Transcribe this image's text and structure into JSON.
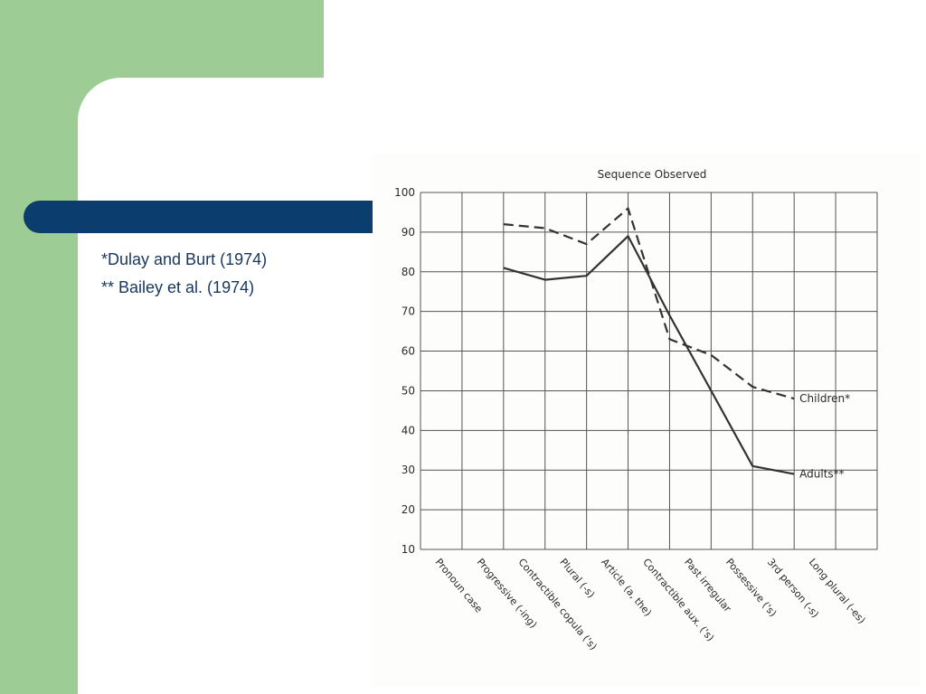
{
  "slide": {
    "colors": {
      "green": "#9dcc95",
      "navy": "#0b3e6f",
      "text": "#17375e"
    },
    "notes": [
      "*Dulay and Burt (1974)",
      "** Bailey et al. (1974)"
    ]
  },
  "chart_data": {
    "type": "line",
    "title": "Sequence Observed",
    "xlabel": "",
    "ylabel": "",
    "categories": [
      "Pronoun case",
      "Progressive (-ing)",
      "Contractible copula ('s)",
      "Plural (-s)",
      "Article (a, the)",
      "Contractible aux. ('s)",
      "Past irregular",
      "Possessive ('s)",
      "3rd person (-s)",
      "Long plural (-es)"
    ],
    "yticks": [
      "10",
      "20",
      "30",
      "40",
      "50",
      "60",
      "70",
      "80",
      "90",
      "100"
    ],
    "ylim": [
      10,
      100
    ],
    "grid": true,
    "legend": "inline labels at line ends",
    "series": [
      {
        "name": "Children*",
        "style": "dashed",
        "color": "#333333",
        "values": [
          null,
          92,
          91,
          87,
          96,
          63,
          59,
          51,
          48,
          null
        ]
      },
      {
        "name": "Adults**",
        "style": "solid",
        "color": "#333333",
        "values": [
          null,
          81,
          78,
          79,
          89,
          69,
          50,
          31,
          29,
          null
        ]
      }
    ]
  }
}
